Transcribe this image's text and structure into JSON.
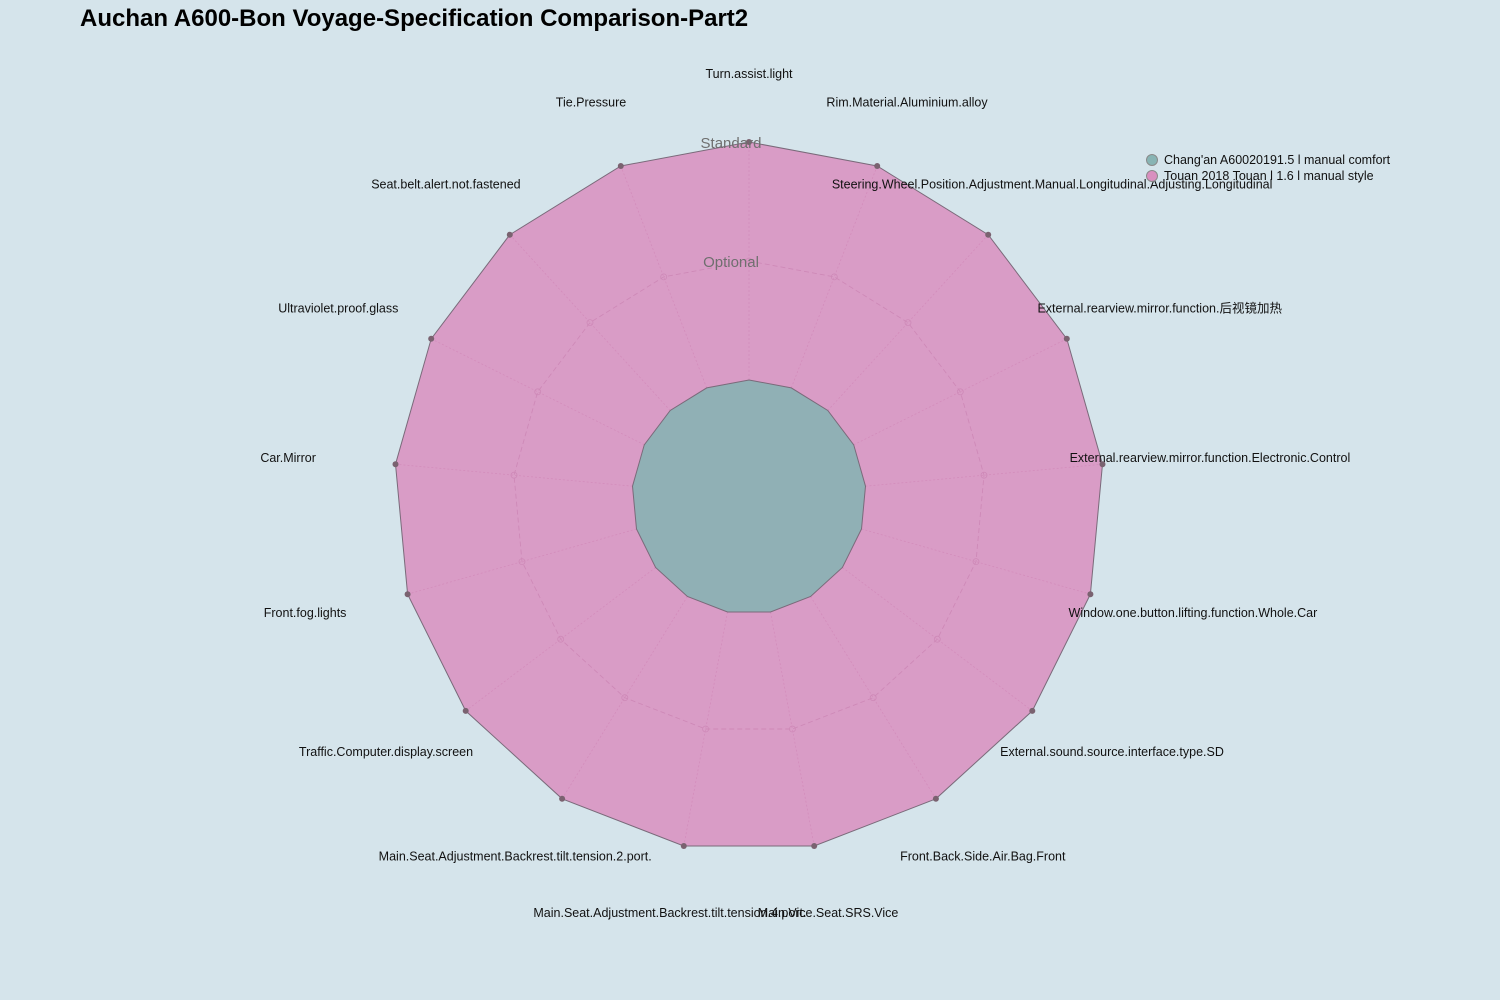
{
  "chart_data": {
    "type": "radar",
    "title": "Auchan A600-Bon Voyage-Specification Comparison-Part2",
    "levels": [
      "",
      "Optional",
      "Standard"
    ],
    "axes": [
      "Turn.assist.light",
      "Rim.Material.Aluminium.alloy",
      "Steering.Wheel.Position.Adjustment.Manual.Longitudinal.Adjusting.Longitudinal",
      "External.rearview.mirror.function.后视镜加热",
      "External.rearview.mirror.function.Electronic.Control",
      "Window.one.button.lifting.function.Whole.Car",
      "External.sound.source.interface.type.SD",
      "Front.Back.Side.Air.Bag.Front",
      "Main.Vice.Seat.SRS.Vice",
      "Main.Seat.Adjustment.Backrest.tilt.tension.4.port.",
      "Main.Seat.Adjustment.Backrest.tilt.tension.2.port.",
      "Traffic.Computer.display.screen",
      "Front.fog.lights",
      "Car.Mirror",
      "Ultraviolet.proof.glass",
      "Seat.belt.alert.not.fastened",
      "Tie.Pressure"
    ],
    "series": [
      {
        "name": "Chang'an A60020191.5 l manual comfort",
        "color": "#88b4b4",
        "values": [
          0,
          0,
          0,
          0,
          0,
          0,
          0,
          0,
          0,
          0,
          0,
          0,
          0,
          0,
          0,
          0,
          0
        ]
      },
      {
        "name": "Touan 2018 Touan l 1.6 l manual style",
        "color": "#d98fbf",
        "values": [
          2,
          2,
          2,
          2,
          2,
          2,
          2,
          2,
          2,
          2,
          2,
          2,
          2,
          2,
          2,
          2,
          2
        ]
      }
    ],
    "legend_position": "top-right"
  }
}
